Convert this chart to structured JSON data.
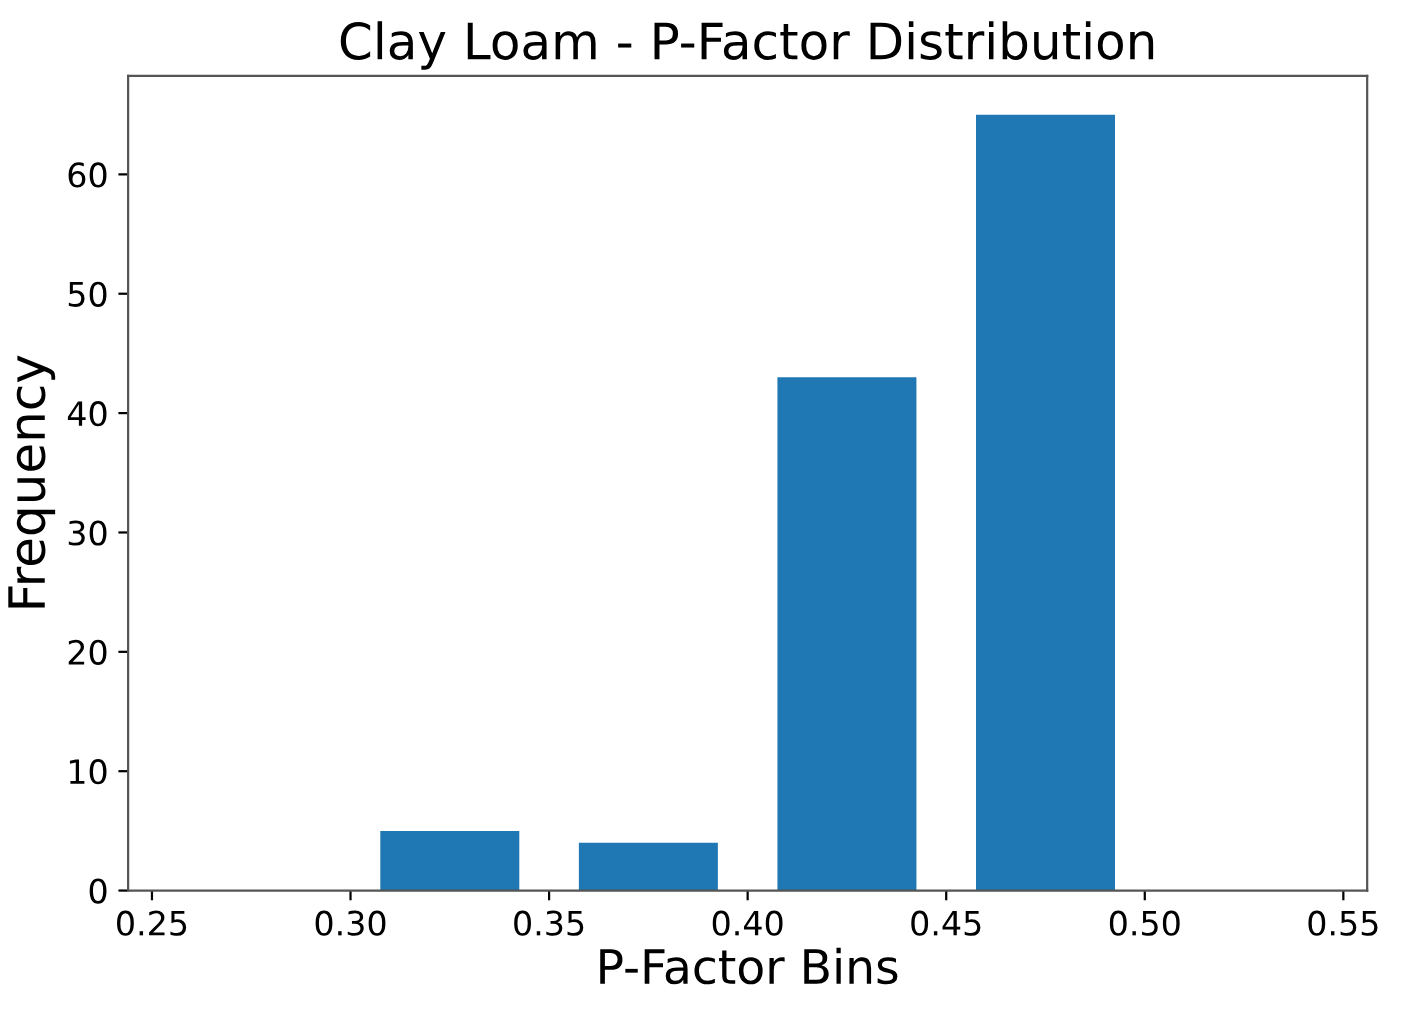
{
  "chart_data": {
    "type": "histogram",
    "title": "Clay Loam - P-Factor Distribution",
    "xlabel": "P-Factor Bins",
    "ylabel": "Frequency",
    "bins": [
      0.3,
      0.35,
      0.4,
      0.45,
      0.5
    ],
    "values": [
      5,
      4,
      43,
      65
    ],
    "color": "#1f77b4",
    "xlim": [
      0.244,
      0.556
    ],
    "xticks": [
      0.25,
      {
        "value": 0.3,
        "label": "0.30"
      },
      0.35,
      {
        "value": 0.4,
        "label": "0.40"
      },
      0.45,
      {
        "value": 0.5,
        "label": "0.50"
      },
      0.55
    ],
    "ylim": [
      0,
      68.25
    ],
    "yticks": [
      0,
      10,
      20,
      30,
      40,
      50,
      60
    ],
    "grid": false
  }
}
